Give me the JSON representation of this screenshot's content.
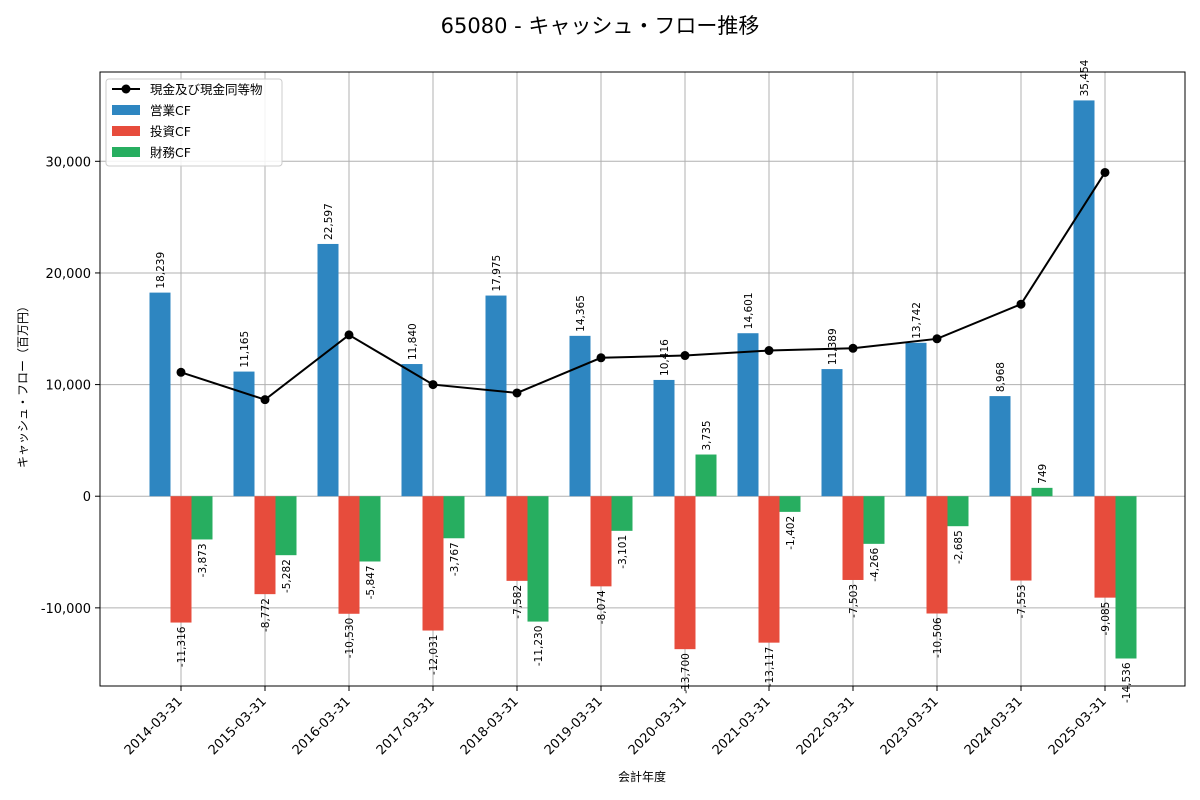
{
  "chart_data": {
    "type": "bar",
    "title": "65080 - キャッシュ・フロー推移",
    "xlabel": "会計年度",
    "ylabel": "キャッシュ・フロー（百万円）",
    "ylim": [
      -17000,
      38000
    ],
    "yticks": [
      -10000,
      0,
      10000,
      20000,
      30000
    ],
    "ytick_labels": [
      "-10,000",
      "0",
      "10,000",
      "20,000",
      "30,000"
    ],
    "grid": true,
    "legend_position": "top-left",
    "categories": [
      "2014-03-31",
      "2015-03-31",
      "2016-03-31",
      "2017-03-31",
      "2018-03-31",
      "2019-03-31",
      "2020-03-31",
      "2021-03-31",
      "2022-03-31",
      "2023-03-31",
      "2024-03-31",
      "2025-03-31"
    ],
    "series": [
      {
        "name": "営業CF",
        "kind": "bar",
        "color": "#2e86c1",
        "values": [
          18239,
          11165,
          22597,
          11840,
          17975,
          14365,
          10416,
          14601,
          11389,
          13742,
          8968,
          35454
        ],
        "labels": [
          "18,239",
          "11,165",
          "22,597",
          "11,840",
          "17,975",
          "14,365",
          "10,416",
          "14,601",
          "11,389",
          "13,742",
          "8,968",
          "35,454"
        ]
      },
      {
        "name": "投資CF",
        "kind": "bar",
        "color": "#e74c3c",
        "values": [
          -11316,
          -8772,
          -10530,
          -12031,
          -7582,
          -8074,
          -13700,
          -13117,
          -7503,
          -10506,
          -7553,
          -9085
        ],
        "labels": [
          "-11,316",
          "-8,772",
          "-10,530",
          "-12,031",
          "-7,582",
          "-8,074",
          "-13,700",
          "-13,117",
          "-7,503",
          "-10,506",
          "-7,553",
          "-9,085"
        ]
      },
      {
        "name": "財務CF",
        "kind": "bar",
        "color": "#27ae60",
        "values": [
          -3873,
          -5282,
          -5847,
          -3767,
          -11230,
          -3101,
          3735,
          -1402,
          -4266,
          -2685,
          749,
          -14536
        ],
        "labels": [
          "-3,873",
          "-5,282",
          "-5,847",
          "-3,767",
          "-11,230",
          "-3,101",
          "3,735",
          "-1,402",
          "-4,266",
          "-2,685",
          "749",
          "-14,536"
        ]
      },
      {
        "name": "現金及び現金同等物",
        "kind": "line",
        "color": "#000000",
        "values": [
          11100,
          8650,
          14450,
          10000,
          9250,
          12400,
          12600,
          13050,
          13250,
          14100,
          17200,
          29000
        ]
      }
    ]
  }
}
